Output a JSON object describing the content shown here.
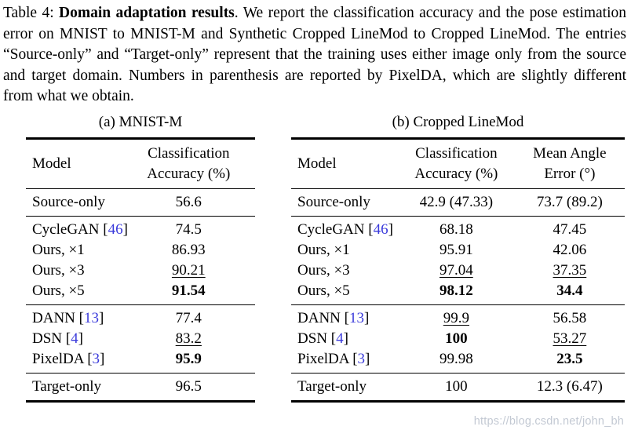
{
  "caption": {
    "prefix": "Table 4: ",
    "bold_title": "Domain adaptation results",
    "body": ". We report the classification accuracy and the pose estimation error on MNIST to MNIST-M and Synthetic Cropped LineMod to Cropped LineMod. The entries “Source-only” and “Target-only” represent that the training uses either image only from the source and target domain. Numbers in parenthesis are reported by PixelDA, which are slightly different from what we obtain."
  },
  "colors": {
    "citation_blue": "#3b3bdb",
    "rule_black": "#000000",
    "watermark_gray": "#b9c0cc"
  },
  "watermark_url": "https://blog.csdn.net/john_bh",
  "tables": [
    {
      "subcaption": "(a) MNIST-M",
      "headers": [
        {
          "lines": [
            "Model"
          ]
        },
        {
          "lines": [
            "Classification",
            "Accuracy (%)"
          ]
        }
      ],
      "sections": [
        {
          "rows": [
            {
              "model": "Source-only",
              "values": [
                {
                  "v": "56.6"
                }
              ]
            }
          ]
        },
        {
          "rows": [
            {
              "model": "CycleGAN",
              "cite": "46",
              "values": [
                {
                  "v": "74.5"
                }
              ]
            },
            {
              "model": "Ours, ×1",
              "values": [
                {
                  "v": "86.93"
                }
              ]
            },
            {
              "model": "Ours, ×3",
              "values": [
                {
                  "v": "90.21",
                  "style": "underline"
                }
              ]
            },
            {
              "model": "Ours, ×5",
              "values": [
                {
                  "v": "91.54",
                  "style": "bold"
                }
              ]
            }
          ]
        },
        {
          "rows": [
            {
              "model": "DANN",
              "cite": "13",
              "values": [
                {
                  "v": "77.4"
                }
              ]
            },
            {
              "model": "DSN",
              "cite": "4",
              "values": [
                {
                  "v": "83.2",
                  "style": "underline"
                }
              ]
            },
            {
              "model": "PixelDA",
              "cite": "3",
              "values": [
                {
                  "v": "95.9",
                  "style": "bold"
                }
              ]
            }
          ]
        },
        {
          "rows": [
            {
              "model": "Target-only",
              "values": [
                {
                  "v": "96.5"
                }
              ]
            }
          ]
        }
      ]
    },
    {
      "subcaption": "(b) Cropped LineMod",
      "headers": [
        {
          "lines": [
            "Model"
          ]
        },
        {
          "lines": [
            "Classification",
            "Accuracy (%)"
          ]
        },
        {
          "lines": [
            "Mean Angle",
            "Error (°)"
          ]
        }
      ],
      "sections": [
        {
          "rows": [
            {
              "model": "Source-only",
              "values": [
                {
                  "v": "42.9 (47.33)"
                },
                {
                  "v": "73.7 (89.2)"
                }
              ]
            }
          ]
        },
        {
          "rows": [
            {
              "model": "CycleGAN",
              "cite": "46",
              "values": [
                {
                  "v": "68.18"
                },
                {
                  "v": "47.45"
                }
              ]
            },
            {
              "model": "Ours, ×1",
              "values": [
                {
                  "v": "95.91"
                },
                {
                  "v": "42.06"
                }
              ]
            },
            {
              "model": "Ours, ×3",
              "values": [
                {
                  "v": "97.04",
                  "style": "underline"
                },
                {
                  "v": "37.35",
                  "style": "underline"
                }
              ]
            },
            {
              "model": "Ours, ×5",
              "values": [
                {
                  "v": "98.12",
                  "style": "bold"
                },
                {
                  "v": "34.4",
                  "style": "bold"
                }
              ]
            }
          ]
        },
        {
          "rows": [
            {
              "model": "DANN",
              "cite": "13",
              "values": [
                {
                  "v": "99.9",
                  "style": "underline"
                },
                {
                  "v": "56.58"
                }
              ]
            },
            {
              "model": "DSN",
              "cite": "4",
              "values": [
                {
                  "v": "100",
                  "style": "bold"
                },
                {
                  "v": "53.27",
                  "style": "underline"
                }
              ]
            },
            {
              "model": "PixelDA",
              "cite": "3",
              "values": [
                {
                  "v": "99.98"
                },
                {
                  "v": "23.5",
                  "style": "bold"
                }
              ]
            }
          ]
        },
        {
          "rows": [
            {
              "model": "Target-only",
              "values": [
                {
                  "v": "100"
                },
                {
                  "v": "12.3 (6.47)"
                }
              ]
            }
          ]
        }
      ]
    }
  ]
}
